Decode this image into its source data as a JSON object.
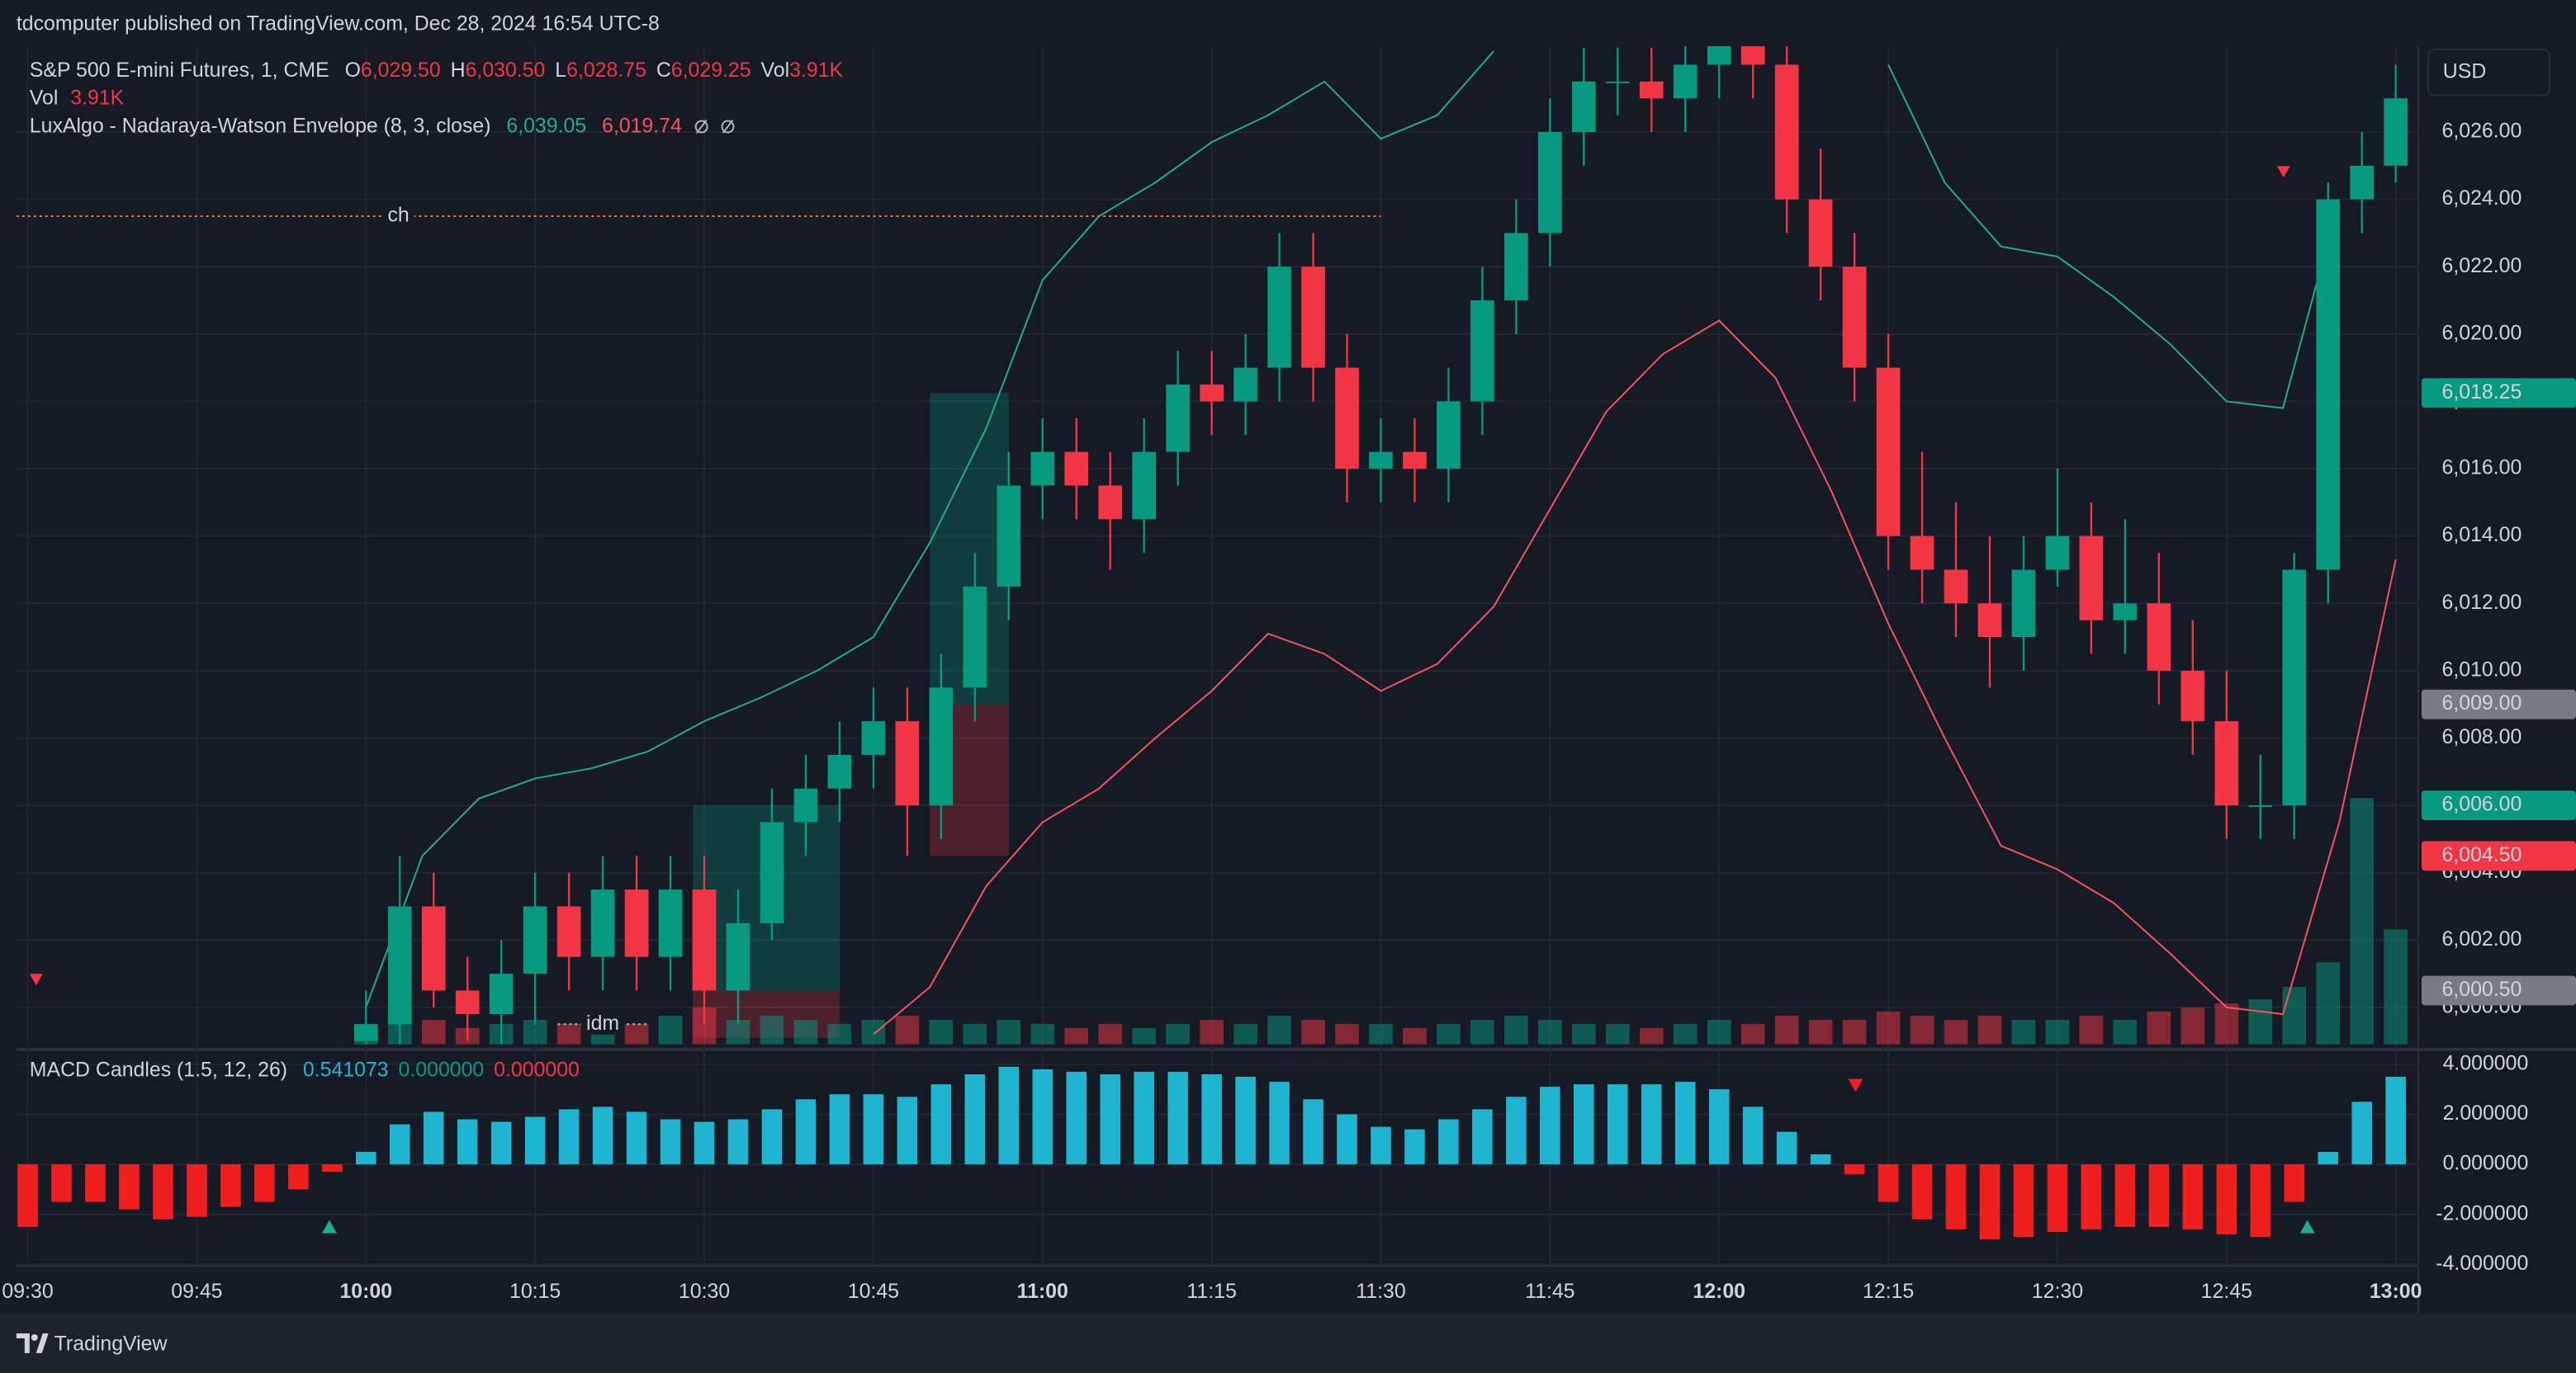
{
  "header": {
    "title": "tdcomputer published on TradingView.com, Dec 28, 2024 16:54 UTC-8"
  },
  "footer": {
    "brand": "TradingView"
  },
  "chart_data": [
    {
      "type": "candlestick",
      "currency": "USD",
      "legend": {
        "symbol": "S&P 500 E-mini Futures, 1, CME",
        "fields": [
          {
            "key": "O",
            "value": "6,029.50"
          },
          {
            "key": "H",
            "value": "6,030.50"
          },
          {
            "key": "L",
            "value": "6,028.75"
          },
          {
            "key": "C",
            "value": "6,029.25"
          },
          {
            "key": "Vol",
            "value": "3.91K"
          }
        ],
        "volume": {
          "name": "Vol",
          "value": "3.91K"
        },
        "indicator": {
          "name": "LuxAlgo - Nadaraya-Watson Envelope (8, 3, close)",
          "upper": "6,039.05",
          "lower": "6,019.74"
        }
      },
      "up_color": "#089981",
      "down_color": "#f23645",
      "xlim": [
        "09:29",
        "13:02"
      ],
      "xticks": [
        "09:30",
        "09:45",
        "10:00",
        "10:15",
        "10:30",
        "10:45",
        "11:00",
        "11:15",
        "11:30",
        "11:45",
        "12:00",
        "12:15",
        "12:30",
        "12:45",
        "13:00"
      ],
      "ylim": [
        5998.9,
        6028.55
      ],
      "yticks": [
        {
          "value": 6000,
          "label": "6,000.00"
        },
        {
          "value": 6002,
          "label": "6,002.00"
        },
        {
          "value": 6004,
          "label": "6,004.00"
        },
        {
          "value": 6006,
          "label": "6,006.00"
        },
        {
          "value": 6008,
          "label": "6,008.00"
        },
        {
          "value": 6010,
          "label": "6,010.00"
        },
        {
          "value": 6012,
          "label": "6,012.00"
        },
        {
          "value": 6014,
          "label": "6,014.00"
        },
        {
          "value": 6016,
          "label": "6,016.00"
        },
        {
          "value": 6018,
          "label": "6,018.00"
        },
        {
          "value": 6020,
          "label": "6,020.00"
        },
        {
          "value": 6022,
          "label": "6,022.00"
        },
        {
          "value": 6024,
          "label": "6,024.00"
        },
        {
          "value": 6026,
          "label": "6,026.00"
        }
      ],
      "grid": true,
      "x": [
        "10:00",
        "10:03",
        "10:06",
        "10:09",
        "10:12",
        "10:15",
        "10:18",
        "10:21",
        "10:24",
        "10:27",
        "10:30",
        "10:33",
        "10:36",
        "10:39",
        "10:42",
        "10:45",
        "10:48",
        "10:51",
        "10:54",
        "10:57",
        "11:00",
        "11:03",
        "11:06",
        "11:09",
        "11:12",
        "11:15",
        "11:18",
        "11:21",
        "11:24",
        "11:27",
        "11:30",
        "11:33",
        "11:36",
        "11:39",
        "11:42",
        "11:45",
        "11:48",
        "11:51",
        "11:54",
        "11:57",
        "12:00",
        "12:03",
        "12:06",
        "12:09",
        "12:12",
        "12:15",
        "12:18",
        "12:21",
        "12:24",
        "12:27",
        "12:30",
        "12:33",
        "12:36",
        "12:39",
        "12:42",
        "12:45",
        "12:48",
        "12:51",
        "12:54",
        "12:57",
        "13:00"
      ],
      "open": [
        5999,
        5999.5,
        6003,
        6000.5,
        5999.8,
        6001,
        6003,
        6001.5,
        6003.5,
        6001.5,
        6003.5,
        6000.5,
        6002.5,
        6005.5,
        6006.5,
        6007.5,
        6008.5,
        6006,
        6009.5,
        6012.5,
        6015.5,
        6016.5,
        6015.5,
        6014.5,
        6016.5,
        6018.5,
        6018,
        6019,
        6022,
        6019,
        6016,
        6016.5,
        6016,
        6018,
        6021,
        6023,
        6026,
        6027.5,
        6027.5,
        6027,
        6028,
        6029,
        6028,
        6024,
        6022,
        6019,
        6014,
        6013,
        6012,
        6011,
        6013,
        6014,
        6011.5,
        6012,
        6010,
        6008.5,
        6006,
        6006,
        6013,
        6024,
        6025
      ],
      "high": [
        6000.5,
        6004.5,
        6004,
        6001.5,
        6002,
        6004,
        6004,
        6004.5,
        6004.5,
        6004.5,
        6004.5,
        6003.5,
        6006.5,
        6007.5,
        6008.5,
        6009.5,
        6009.5,
        6010.5,
        6013.5,
        6016.5,
        6017.5,
        6017.5,
        6016.5,
        6017.5,
        6019.5,
        6019.5,
        6020,
        6023,
        6023,
        6020,
        6017.5,
        6017.5,
        6019,
        6022,
        6024,
        6027,
        6028.5,
        6028.5,
        6028.5,
        6029,
        6030,
        6030.5,
        6029.5,
        6025.5,
        6023,
        6020,
        6016.5,
        6015,
        6014,
        6014,
        6016,
        6015,
        6014.5,
        6013.5,
        6011.5,
        6010,
        6007.5,
        6013.5,
        6024.5,
        6026,
        6028
      ],
      "low": [
        5998,
        5998.5,
        6000,
        5999,
        5998.5,
        5999.5,
        6000.5,
        6000.5,
        6000.5,
        6000.5,
        5999.5,
        5999.5,
        6002,
        6004.5,
        6005.5,
        6006.5,
        6004.5,
        6005,
        6008.5,
        6011.5,
        6014.5,
        6014.5,
        6013,
        6013.5,
        6015.5,
        6017,
        6017,
        6018,
        6018,
        6015,
        6015,
        6015,
        6015,
        6017,
        6020,
        6022,
        6025,
        6026.5,
        6026,
        6026,
        6027,
        6027,
        6023,
        6021,
        6018,
        6013,
        6012,
        6011,
        6009.5,
        6010,
        6012.5,
        6010.5,
        6010.5,
        6009,
        6007.5,
        6005,
        6005,
        6005,
        6012,
        6023,
        6024.5
      ],
      "close": [
        5999.5,
        6003,
        6000.5,
        5999.8,
        6001,
        6003,
        6001.5,
        6003.5,
        6001.5,
        6003.5,
        6000.5,
        6002.5,
        6005.5,
        6006.5,
        6007.5,
        6008.5,
        6006,
        6009.5,
        6012.5,
        6015.5,
        6016.5,
        6015.5,
        6014.5,
        6016.5,
        6018.5,
        6018,
        6019,
        6022,
        6019,
        6016,
        6016.5,
        6016,
        6018,
        6021,
        6023,
        6026,
        6027.5,
        6027.5,
        6027,
        6028,
        6029,
        6028,
        6024,
        6022,
        6019,
        6014,
        6013,
        6012,
        6011,
        6013,
        6014,
        6011.5,
        6012,
        6010,
        6008.5,
        6006,
        6006,
        6013,
        6024,
        6025,
        6027
      ],
      "volume": [
        0.5,
        0.9,
        0.6,
        0.4,
        0.5,
        0.6,
        0.5,
        0.6,
        0.5,
        0.7,
        0.9,
        0.6,
        0.7,
        0.6,
        0.5,
        0.6,
        0.7,
        0.6,
        0.5,
        0.6,
        0.5,
        0.4,
        0.5,
        0.4,
        0.5,
        0.6,
        0.5,
        0.7,
        0.6,
        0.5,
        0.5,
        0.4,
        0.5,
        0.6,
        0.7,
        0.6,
        0.5,
        0.5,
        0.4,
        0.5,
        0.6,
        0.5,
        0.7,
        0.6,
        0.6,
        0.8,
        0.7,
        0.6,
        0.7,
        0.6,
        0.6,
        0.7,
        0.6,
        0.8,
        0.9,
        1.0,
        1.1,
        1.4,
        2.0,
        6.0,
        2.8
      ],
      "envelope": {
        "x": [
          "10:00",
          "10:05",
          "10:10",
          "10:15",
          "10:20",
          "10:25",
          "10:30",
          "10:35",
          "10:40",
          "10:45",
          "10:50",
          "10:55",
          "11:00",
          "11:05",
          "11:10",
          "11:15",
          "11:20",
          "11:25",
          "11:30",
          "11:35",
          "11:40",
          "11:45",
          "11:50",
          "11:55",
          "12:00",
          "12:05",
          "12:10",
          "12:15",
          "12:20",
          "12:25",
          "12:30",
          "12:35",
          "12:40",
          "12:45",
          "12:50",
          "12:55",
          "13:00"
        ],
        "series": [
          {
            "color": "#22ab94",
            "values": [
              6000,
              6004.5,
              6006.2,
              6006.8,
              6007.1,
              6007.6,
              6008.5,
              6009.2,
              6010,
              6011,
              6013.8,
              6017.2,
              6021.6,
              6023.5,
              6024.5,
              6025.7,
              6026.5,
              6027.5,
              6025.8,
              6026.5,
              6028.4,
              null,
              null,
              null,
              null,
              null,
              null,
              6028,
              6024.5,
              6022.6,
              6022.3,
              6021.1,
              6019.7,
              6018,
              6017.8,
              6024,
              null
            ]
          },
          {
            "color": "#f7525f",
            "values": [
              null,
              null,
              null,
              null,
              null,
              null,
              null,
              null,
              null,
              5999.2,
              6000.6,
              6003.6,
              6005.5,
              6006.5,
              6008,
              6009.4,
              6011.1,
              6010.5,
              6009.4,
              6010.2,
              6011.9,
              6014.8,
              6017.7,
              6019.4,
              6020.4,
              6018.7,
              6015.3,
              6011.4,
              6008,
              6004.8,
              6004.1,
              6003.1,
              6001.6,
              6000,
              5999.8,
              6005.5,
              6013.3
            ]
          }
        ]
      },
      "positions": [
        {
          "x0": "10:29",
          "x1": "10:42",
          "target": 6006,
          "entry": 6000.5,
          "stop": 5999.1
        },
        {
          "x0": "10:50",
          "x1": "10:57",
          "target": 6018.25,
          "entry": 6009,
          "stop": 6004.5
        }
      ],
      "annotations": [
        {
          "text": "ch",
          "y": 6023.5,
          "x0": "09:29",
          "x1": "11:30",
          "color": "#f7752a"
        },
        {
          "text": "idm",
          "y": 5999.5,
          "x0": "10:17",
          "x1": "10:25",
          "color": "#b2b5be"
        }
      ],
      "price_tags": [
        {
          "value": 6018.25,
          "label": "6,018.25",
          "color": "#089981"
        },
        {
          "value": 6009,
          "label": "6,009.00",
          "color": "#787b86"
        },
        {
          "value": 6006,
          "label": "6,006.00",
          "color": "#089981"
        },
        {
          "value": 6004.5,
          "label": "6,004.50",
          "color": "#f23645"
        },
        {
          "value": 6000.5,
          "label": "6,000.50",
          "color": "#787b86"
        }
      ]
    },
    {
      "type": "bar",
      "name": "MACD Candles (1.5, 12, 26)",
      "legend_values": [
        {
          "value": "0.541073",
          "color": "#22b5cf"
        },
        {
          "value": "0.000000",
          "color": "#089981"
        },
        {
          "value": "0.000000",
          "color": "#f23645"
        }
      ],
      "up_color": "#1fb5d0",
      "down_color": "#f01f1f",
      "ylim": [
        -4,
        4.4
      ],
      "yticks": [
        {
          "value": 4,
          "label": "4.000000"
        },
        {
          "value": 2,
          "label": "2.000000"
        },
        {
          "value": 0,
          "label": "0.000000"
        },
        {
          "value": -2,
          "label": "-2.000000"
        },
        {
          "value": -4,
          "label": "-4.000000"
        }
      ],
      "x": [
        "09:30",
        "09:33",
        "09:36",
        "09:39",
        "09:42",
        "09:45",
        "09:48",
        "09:51",
        "09:54",
        "09:57",
        "10:00",
        "10:03",
        "10:06",
        "10:09",
        "10:12",
        "10:15",
        "10:18",
        "10:21",
        "10:24",
        "10:27",
        "10:30",
        "10:33",
        "10:36",
        "10:39",
        "10:42",
        "10:45",
        "10:48",
        "10:51",
        "10:54",
        "10:57",
        "11:00",
        "11:03",
        "11:06",
        "11:09",
        "11:12",
        "11:15",
        "11:18",
        "11:21",
        "11:24",
        "11:27",
        "11:30",
        "11:33",
        "11:36",
        "11:39",
        "11:42",
        "11:45",
        "11:48",
        "11:51",
        "11:54",
        "11:57",
        "12:00",
        "12:03",
        "12:06",
        "12:09",
        "12:12",
        "12:15",
        "12:18",
        "12:21",
        "12:24",
        "12:27",
        "12:30",
        "12:33",
        "12:36",
        "12:39",
        "12:42",
        "12:45",
        "12:48",
        "12:51",
        "12:54",
        "12:57",
        "13:00"
      ],
      "values": [
        -2.5,
        -1.5,
        -1.5,
        -1.8,
        -2.2,
        -2.1,
        -1.7,
        -1.5,
        -1.0,
        -0.3,
        0.5,
        1.6,
        2.1,
        1.8,
        1.7,
        1.9,
        2.2,
        2.3,
        2.1,
        1.8,
        1.7,
        1.8,
        2.2,
        2.6,
        2.8,
        2.8,
        2.7,
        3.2,
        3.6,
        3.9,
        3.8,
        3.7,
        3.6,
        3.7,
        3.7,
        3.6,
        3.5,
        3.3,
        2.6,
        2.0,
        1.5,
        1.4,
        1.8,
        2.2,
        2.7,
        3.1,
        3.2,
        3.2,
        3.2,
        3.3,
        3.0,
        2.3,
        1.3,
        0.4,
        -0.4,
        -1.5,
        -2.2,
        -2.6,
        -3.0,
        -2.9,
        -2.7,
        -2.6,
        -2.5,
        -2.5,
        -2.6,
        -2.8,
        -2.9,
        -1.5,
        0.5,
        2.5,
        3.5
      ]
    }
  ]
}
